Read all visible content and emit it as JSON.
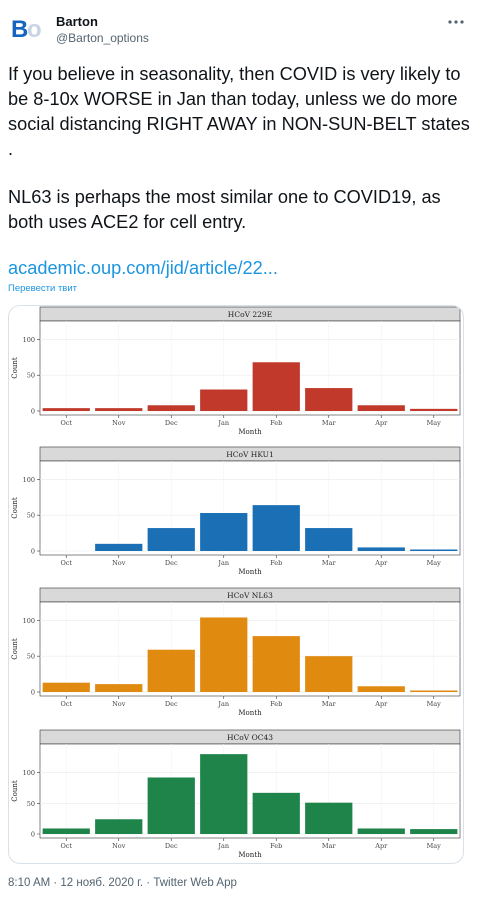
{
  "user": {
    "name": "Barton",
    "handle": "@Barton_options",
    "avatar_text_b": "B",
    "avatar_text_o": "o"
  },
  "tweet": {
    "paragraphs": [
      "If you believe in seasonality, then COVID is very likely to be 8-10x WORSE in Jan than today, unless we do more social distancing RIGHT AWAY in NON-SUN-BELT states .",
      "NL63 is perhaps the most similar one to COVID19, as both uses ACE2 for cell entry."
    ],
    "link": "academic.oup.com/jid/article/22...",
    "translate": "Перевести твит"
  },
  "footer": {
    "meta": "8:10 AM · 12 нояб. 2020 г. · Twitter Web App"
  },
  "icons": {
    "more": "more-options-icon"
  },
  "chart_data": [
    {
      "type": "bar",
      "title": "HCoV 229E",
      "categories": [
        "Oct",
        "Nov",
        "Dec",
        "Jan",
        "Feb",
        "Mar",
        "Apr",
        "May"
      ],
      "values": [
        4,
        4,
        8,
        30,
        68,
        32,
        8,
        3
      ],
      "xlabel": "Month",
      "ylabel": "Count",
      "ylim": [
        0,
        120
      ],
      "yticks": [
        0,
        50,
        100
      ],
      "color": "#c0392b",
      "grid": true
    },
    {
      "type": "bar",
      "title": "HCoV HKU1",
      "categories": [
        "Oct",
        "Nov",
        "Dec",
        "Jan",
        "Feb",
        "Mar",
        "Apr",
        "May"
      ],
      "values": [
        0,
        10,
        32,
        53,
        64,
        32,
        5,
        2
      ],
      "xlabel": "Month",
      "ylabel": "Count",
      "ylim": [
        0,
        120
      ],
      "yticks": [
        0,
        50,
        100
      ],
      "color": "#1a6fb5",
      "grid": true
    },
    {
      "type": "bar",
      "title": "HCoV NL63",
      "categories": [
        "Oct",
        "Nov",
        "Dec",
        "Jan",
        "Feb",
        "Mar",
        "Apr",
        "May"
      ],
      "values": [
        13,
        11,
        59,
        104,
        78,
        50,
        8,
        2
      ],
      "xlabel": "Month",
      "ylabel": "Count",
      "ylim": [
        0,
        120
      ],
      "yticks": [
        0,
        50,
        100
      ],
      "color": "#e08a10",
      "grid": true
    },
    {
      "type": "bar",
      "title": "HCoV OC43",
      "categories": [
        "Oct",
        "Nov",
        "Dec",
        "Jan",
        "Feb",
        "Mar",
        "Apr",
        "May"
      ],
      "values": [
        9,
        24,
        92,
        130,
        67,
        51,
        9,
        8
      ],
      "xlabel": "Month",
      "ylabel": "Count",
      "ylim": [
        0,
        140
      ],
      "yticks": [
        0,
        50,
        100
      ],
      "color": "#1e8449",
      "grid": true
    }
  ]
}
